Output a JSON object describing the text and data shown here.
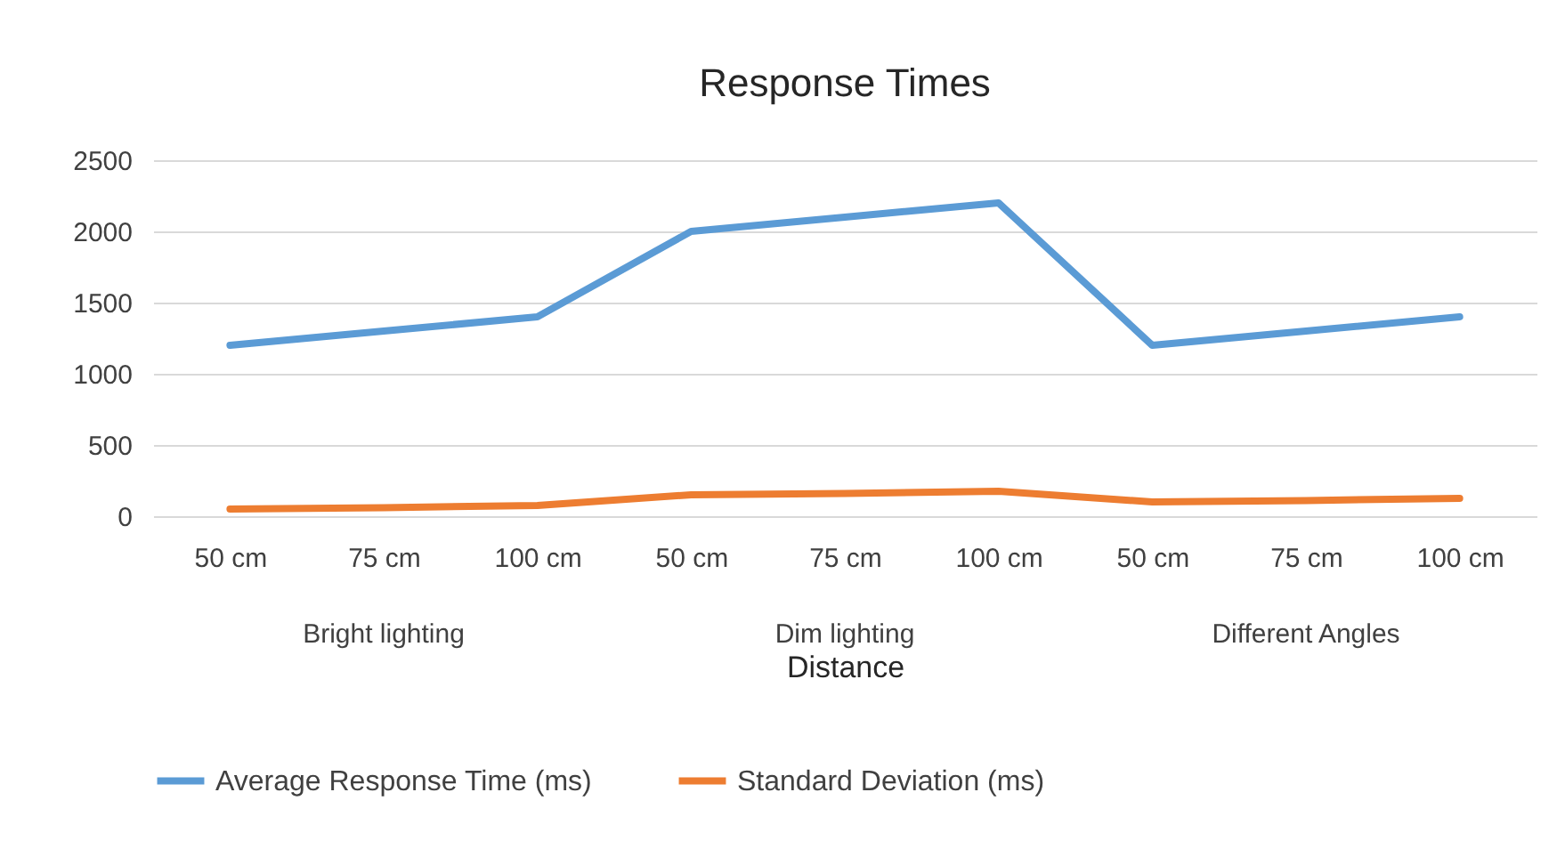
{
  "chart_data": {
    "type": "line",
    "title": "Response Times",
    "xlabel": "Distance",
    "categories": [
      "50 cm",
      "75 cm",
      "100 cm",
      "50 cm",
      "75 cm",
      "100 cm",
      "50 cm",
      "75 cm",
      "100 cm"
    ],
    "annotations": [
      "Bright lighting",
      "Dim lighting",
      "Different Angles"
    ],
    "series": [
      {
        "name": "Average Response Time (ms)",
        "color": "#5b9bd5",
        "values": [
          1200,
          1300,
          1400,
          2000,
          2100,
          2200,
          1200,
          1300,
          1400
        ]
      },
      {
        "name": "Standard Deviation (ms)",
        "color": "#ed7d31",
        "values": [
          50,
          60,
          75,
          150,
          160,
          175,
          100,
          110,
          125
        ]
      }
    ],
    "ylim": [
      0,
      2500
    ],
    "yticks": [
      0,
      500,
      1000,
      1500,
      2000,
      2500
    ],
    "grid": "y",
    "legend": "bottom",
    "marker": "none",
    "line_style": "solid"
  }
}
